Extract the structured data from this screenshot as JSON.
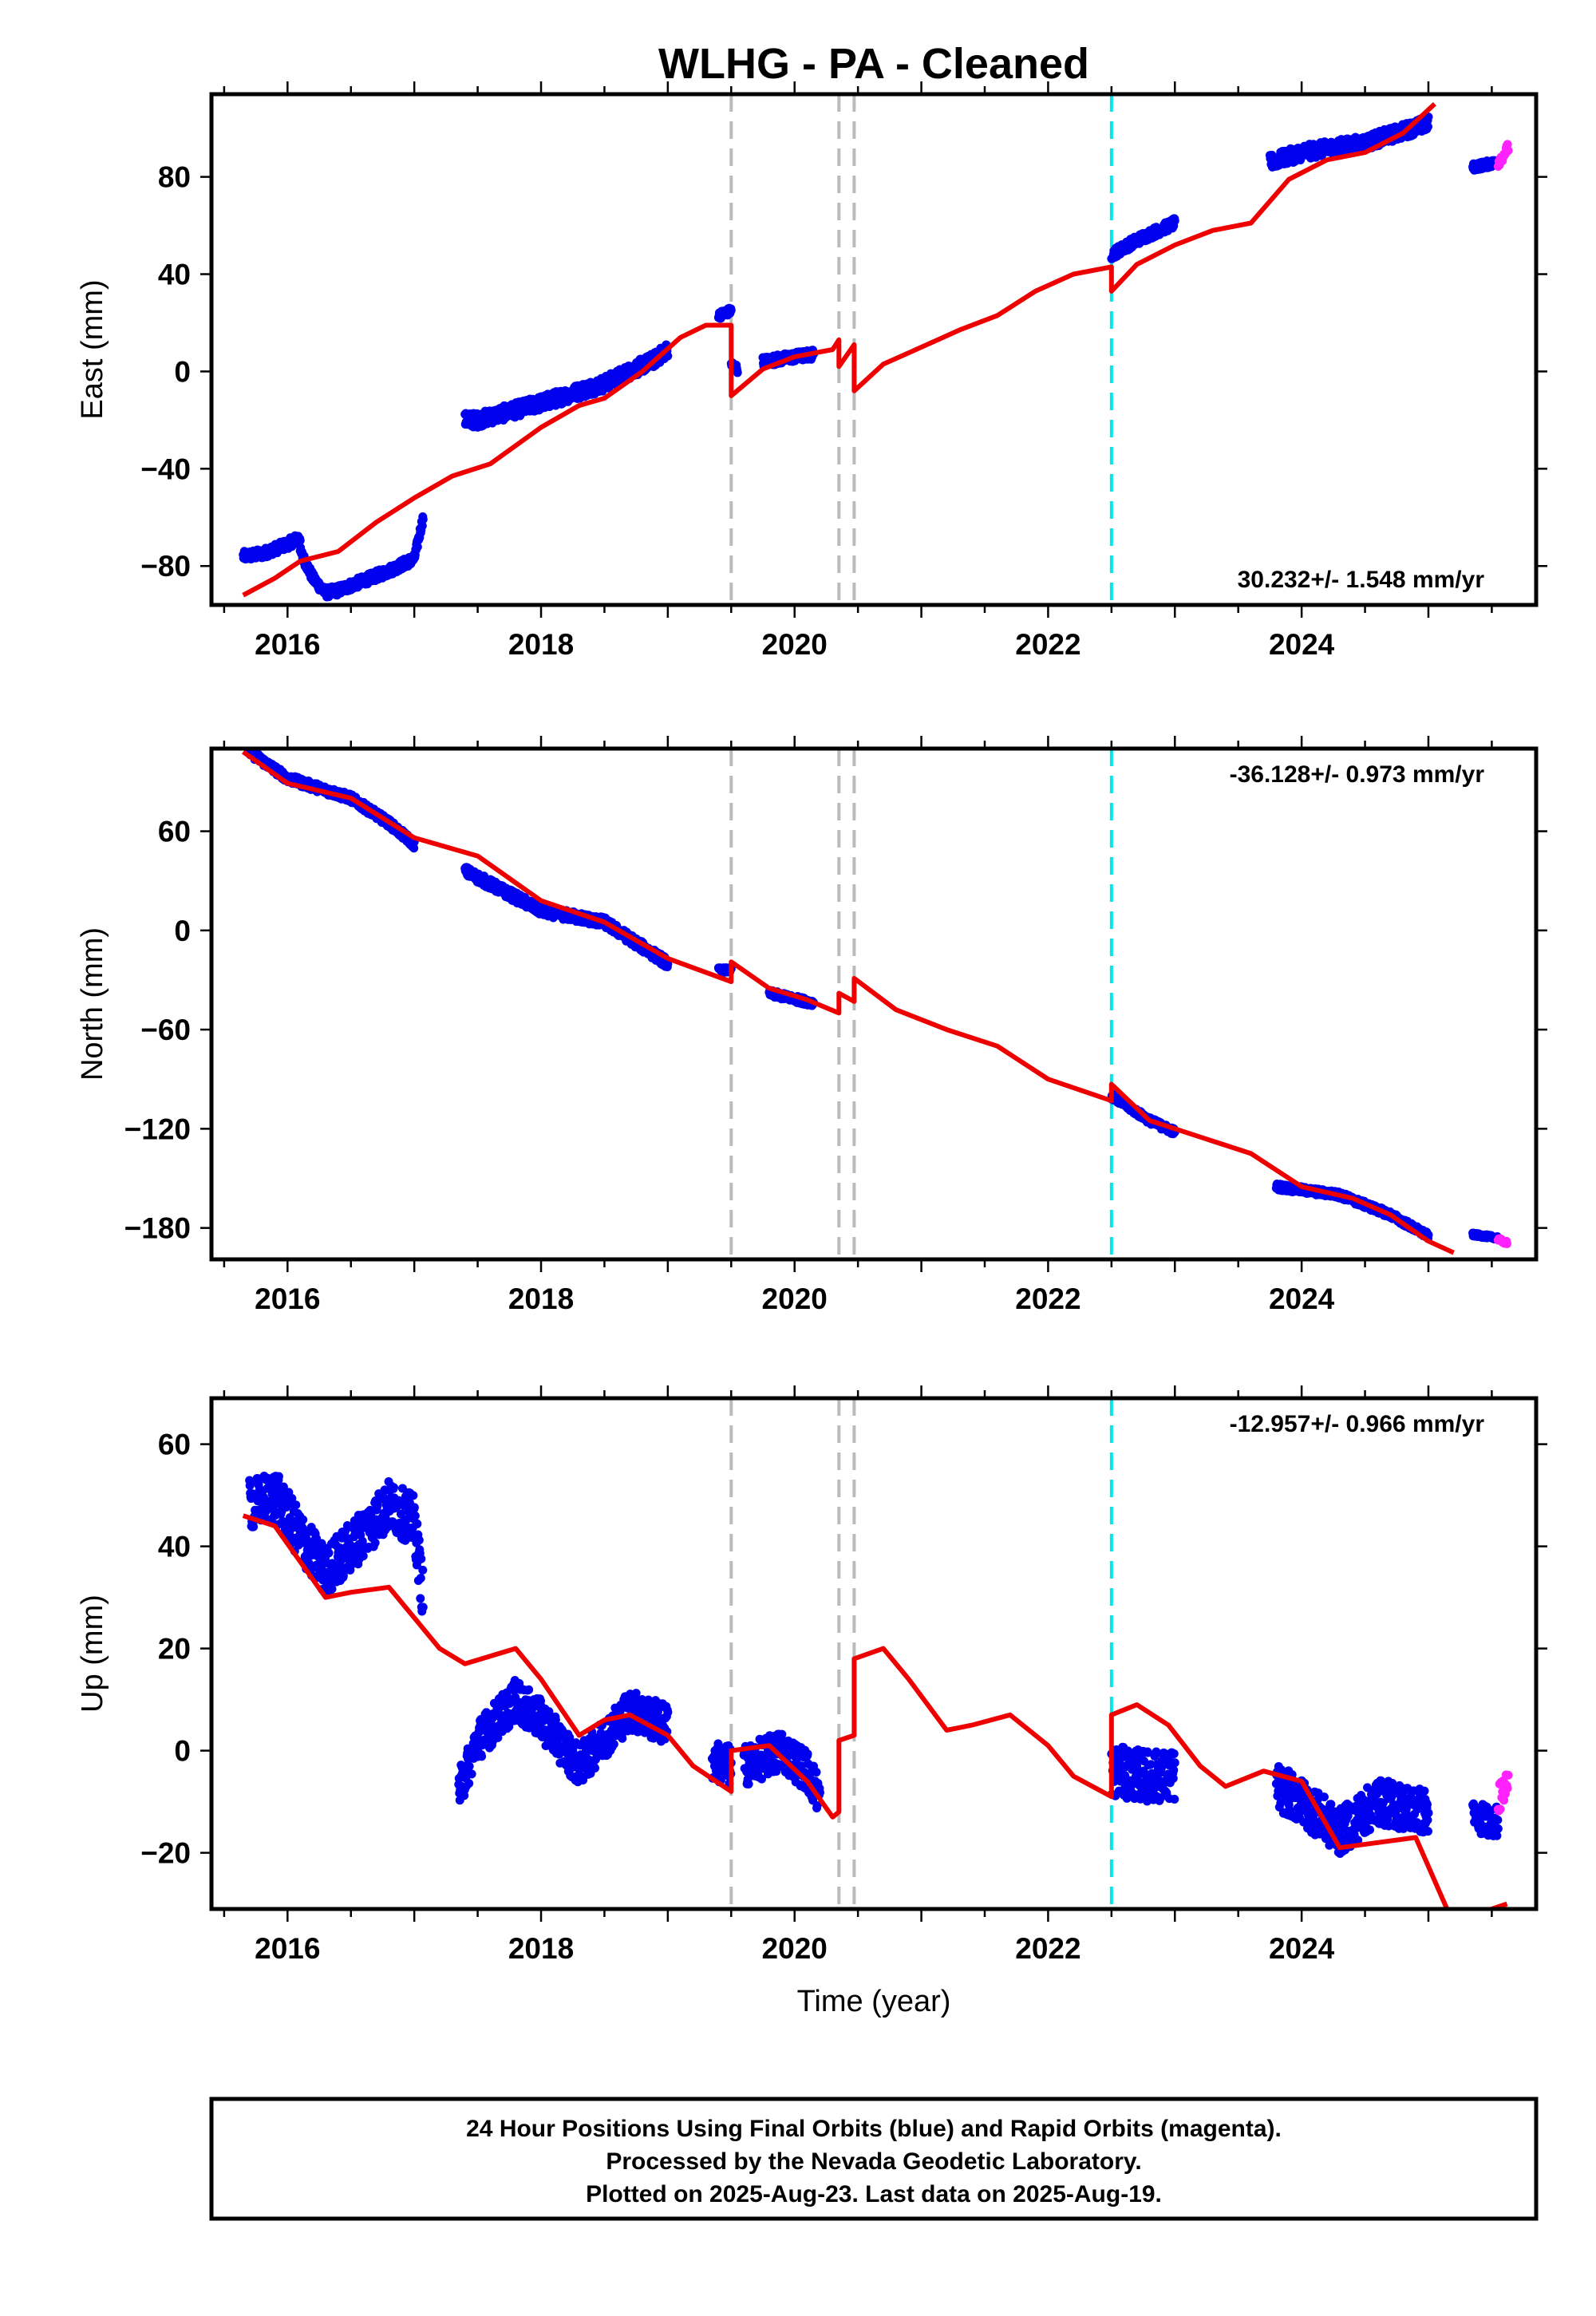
{
  "figure": {
    "title": "WLHG  - PA - Cleaned",
    "xlabel": "Time (year)",
    "footer": [
      "24 Hour Positions Using Final Orbits (blue) and Rapid Orbits (magenta).",
      "Processed by the Nevada Geodetic Laboratory.",
      "Plotted on 2025-Aug-23. Last data on 2025-Aug-19."
    ]
  },
  "colors": {
    "final_orbits": "#0000ee",
    "rapid_orbits": "#ff22ff",
    "model": "#ee0000",
    "equipment_change": "#bbbbbb",
    "earthquake": "#00e5ee"
  },
  "chart_data": [
    {
      "type": "scatter",
      "ylabel": "East (mm)",
      "rate": "30.232+/- 1.548 mm/yr",
      "rate_position": "bottom-right",
      "xlim": [
        2015.4,
        2025.85
      ],
      "ylim": [
        -96,
        114
      ],
      "xticks": [
        2016,
        2018,
        2020,
        2022,
        2024
      ],
      "yticks": [
        -80,
        -40,
        0,
        40,
        80
      ],
      "vlines_gray": [
        2019.5,
        2020.35,
        2020.47
      ],
      "vline_cyan": 2022.5,
      "final_segments": [
        {
          "x": [
            2015.65,
            2015.8,
            2016.0,
            2016.1
          ],
          "y": [
            -76,
            -75,
            -71,
            -68
          ],
          "spread": 2
        },
        {
          "x": [
            2016.1,
            2016.2,
            2016.3,
            2016.4,
            2016.6,
            2016.8,
            2017.0,
            2017.07
          ],
          "y": [
            -74,
            -85,
            -91,
            -90,
            -86,
            -82,
            -77,
            -60
          ],
          "spread": 2
        },
        {
          "x": [
            2017.4,
            2017.5,
            2018.0,
            2018.5,
            2018.9
          ],
          "y": [
            -20,
            -20,
            -13,
            -5,
            5
          ],
          "spread": 3
        },
        {
          "x": [
            2018.9,
            2019.0
          ],
          "y": [
            5,
            9
          ],
          "spread": 3
        },
        {
          "x": [
            2019.4,
            2019.5
          ],
          "y": [
            23,
            25
          ],
          "spread": 1.5
        },
        {
          "x": [
            2019.5,
            2019.55
          ],
          "y": [
            3,
            1
          ],
          "spread": 1.5
        },
        {
          "x": [
            2019.75,
            2020.0,
            2020.15
          ],
          "y": [
            4,
            6,
            7
          ],
          "spread": 2
        },
        {
          "x": [
            2022.5,
            2022.7,
            2023.0
          ],
          "y": [
            48,
            54,
            61
          ],
          "spread": 2
        },
        {
          "x": [
            2023.75,
            2024.0,
            2024.5,
            2025.0
          ],
          "y": [
            86,
            90,
            94,
            102
          ],
          "spread": 3
        },
        {
          "x": [
            2025.35,
            2025.55
          ],
          "y": [
            84,
            86
          ],
          "spread": 1.5
        }
      ],
      "rapid_segment": {
        "x": [
          2025.55,
          2025.63
        ],
        "y": [
          86,
          92
        ],
        "spread": 2
      },
      "model": {
        "x": [
          2015.65,
          2015.9,
          2016.1,
          2016.4,
          2016.7,
          2017.0,
          2017.3,
          2017.6,
          2018.0,
          2018.3,
          2018.5,
          2018.8,
          2019.1,
          2019.3,
          2019.5,
          2019.5,
          2019.75,
          2020.0,
          2020.3,
          2020.35,
          2020.35,
          2020.47,
          2020.47,
          2020.7,
          2021.0,
          2021.3,
          2021.6,
          2021.9,
          2022.2,
          2022.5,
          2022.5,
          2022.7,
          2023.0,
          2023.3,
          2023.6,
          2023.9,
          2024.2,
          2024.5,
          2024.8,
          2025.05
        ],
        "y": [
          -92,
          -85,
          -78,
          -74,
          -62,
          -52,
          -43,
          -38,
          -23,
          -14,
          -11,
          0,
          14,
          19,
          19,
          -10,
          1,
          6,
          9,
          13,
          2,
          11,
          -8,
          3,
          10,
          17,
          23,
          33,
          40,
          43,
          33,
          44,
          52,
          58,
          61,
          79,
          87,
          90,
          98,
          110
        ]
      }
    },
    {
      "type": "scatter",
      "ylabel": "North (mm)",
      "rate": "-36.128+/- 0.973 mm/yr",
      "rate_position": "top-right",
      "xlim": [
        2015.4,
        2025.85
      ],
      "ylim": [
        -199,
        110
      ],
      "xticks": [
        2016,
        2018,
        2020,
        2022,
        2024
      ],
      "yticks": [
        -180,
        -120,
        -60,
        0,
        60
      ],
      "vlines_gray": [
        2019.5,
        2020.35,
        2020.47
      ],
      "vline_cyan": 2022.5,
      "final_segments": [
        {
          "x": [
            2015.7,
            2016.0,
            2016.5,
            2016.8,
            2017.0
          ],
          "y": [
            108,
            92,
            80,
            65,
            52
          ],
          "spread": 2.5
        },
        {
          "x": [
            2017.4,
            2018.0,
            2018.5,
            2019.0
          ],
          "y": [
            36,
            12,
            5,
            -20
          ],
          "spread": 3
        },
        {
          "x": [
            2019.4,
            2019.5
          ],
          "y": [
            -24,
            -24
          ],
          "spread": 1.5
        },
        {
          "x": [
            2019.8,
            2020.15
          ],
          "y": [
            -38,
            -44
          ],
          "spread": 2
        },
        {
          "x": [
            2022.5,
            2022.8,
            2023.0
          ],
          "y": [
            -100,
            -115,
            -122
          ],
          "spread": 2
        },
        {
          "x": [
            2023.8,
            2024.3,
            2024.7,
            2025.0
          ],
          "y": [
            -155,
            -160,
            -172,
            -185
          ],
          "spread": 2
        },
        {
          "x": [
            2025.35,
            2025.55
          ],
          "y": [
            -184,
            -186
          ],
          "spread": 1
        }
      ],
      "rapid_segment": {
        "x": [
          2025.55,
          2025.62
        ],
        "y": [
          -187,
          -189
        ],
        "spread": 1
      },
      "model": {
        "x": [
          2015.65,
          2016.0,
          2016.5,
          2017.0,
          2017.5,
          2018.0,
          2018.5,
          2019.0,
          2019.5,
          2019.5,
          2019.8,
          2020.1,
          2020.35,
          2020.35,
          2020.47,
          2020.47,
          2020.8,
          2021.2,
          2021.6,
          2022.0,
          2022.5,
          2022.5,
          2022.8,
          2023.2,
          2023.6,
          2024.0,
          2024.4,
          2024.7,
          2025.0,
          2025.2
        ],
        "y": [
          108,
          89,
          80,
          56,
          45,
          18,
          5,
          -17,
          -31,
          -19,
          -35,
          -42,
          -50,
          -38,
          -43,
          -29,
          -48,
          -60,
          -70,
          -90,
          -103,
          -93,
          -115,
          -125,
          -135,
          -155,
          -162,
          -172,
          -188,
          -195
        ]
      }
    },
    {
      "type": "scatter",
      "ylabel": "Up (mm)",
      "rate": "-12.957+/- 0.966 mm/yr",
      "rate_position": "top-right",
      "xlim": [
        2015.4,
        2025.85
      ],
      "ylim": [
        -31,
        69
      ],
      "xticks": [
        2016,
        2018,
        2020,
        2022,
        2024
      ],
      "yticks": [
        -20,
        0,
        20,
        40,
        60
      ],
      "vlines_gray": [
        2019.5,
        2020.35,
        2020.47
      ],
      "vline_cyan": 2022.5,
      "final_segments": [
        {
          "x": [
            2015.7,
            2015.9,
            2016.1,
            2016.3,
            2016.5,
            2016.8,
            2017.0,
            2017.07
          ],
          "y": [
            48,
            50,
            42,
            35,
            40,
            48,
            45,
            30
          ],
          "spread": 5
        },
        {
          "x": [
            2017.35,
            2017.5,
            2017.8,
            2018.0,
            2018.3,
            2018.7,
            2019.0
          ],
          "y": [
            -8,
            2,
            10,
            6,
            -3,
            8,
            5
          ],
          "spread": 4
        },
        {
          "x": [
            2019.35,
            2019.5
          ],
          "y": [
            -2,
            -3
          ],
          "spread": 4
        },
        {
          "x": [
            2019.6,
            2019.9,
            2020.1,
            2020.2
          ],
          "y": [
            -3,
            0,
            -4,
            -9
          ],
          "spread": 4
        },
        {
          "x": [
            2022.5,
            2022.8,
            2023.0
          ],
          "y": [
            -4,
            -5,
            -5
          ],
          "spread": 5
        },
        {
          "x": [
            2023.8,
            2024.0,
            2024.3,
            2024.6,
            2025.0
          ],
          "y": [
            -7,
            -10,
            -16,
            -10,
            -12
          ],
          "spread": 4.5
        },
        {
          "x": [
            2025.35,
            2025.55
          ],
          "y": [
            -13,
            -14
          ],
          "spread": 3
        }
      ],
      "rapid_segment": {
        "x": [
          2025.55,
          2025.63
        ],
        "y": [
          -10,
          -6
        ],
        "spread": 3
      },
      "model": {
        "x": [
          2015.65,
          2015.9,
          2016.1,
          2016.3,
          2016.5,
          2016.8,
          2017.0,
          2017.2,
          2017.4,
          2017.8,
          2018.0,
          2018.3,
          2018.5,
          2018.7,
          2019.0,
          2019.2,
          2019.5,
          2019.5,
          2019.8,
          2020.1,
          2020.3,
          2020.35,
          2020.35,
          2020.47,
          2020.47,
          2020.7,
          2020.9,
          2021.2,
          2021.4,
          2021.7,
          2022.0,
          2022.2,
          2022.5,
          2022.5,
          2022.7,
          2022.95,
          2023.2,
          2023.4,
          2023.7,
          2024.0,
          2024.3,
          2024.6,
          2024.9,
          2025.2,
          2025.5,
          2025.62
        ],
        "y": [
          46,
          44,
          37,
          30,
          31,
          32,
          26,
          20,
          17,
          20,
          14,
          3,
          6,
          7,
          3,
          -3,
          -8,
          0,
          1,
          -6,
          -13,
          -12,
          2,
          3,
          18,
          20,
          14,
          4,
          5,
          7,
          1,
          -5,
          -9,
          7,
          9,
          5,
          -3,
          -7,
          -4,
          -6,
          -19,
          -18,
          -17,
          -34,
          -31,
          -30
        ]
      }
    }
  ]
}
